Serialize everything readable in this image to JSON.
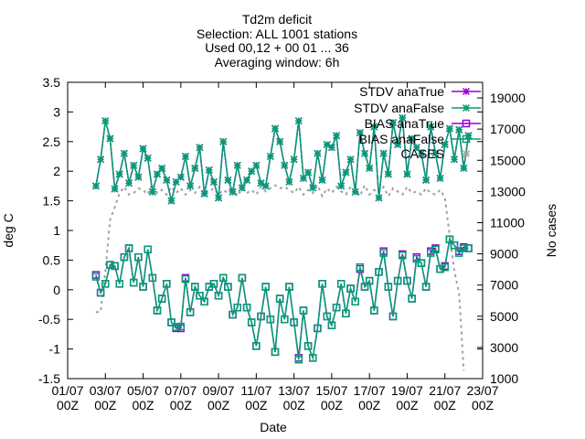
{
  "chart_data": {
    "type": "line",
    "title_lines": [
      "Td2m deficit",
      "Selection: ALL    1001 stations",
      "Used 00,12 + 00 01 ... 36",
      "Averaging window:  6h"
    ],
    "xlabel": "Date",
    "ylabel": "deg C",
    "y2label": "No cases",
    "xlim": [
      0,
      22
    ],
    "ylim": [
      -1.5,
      3.5
    ],
    "y2lim": [
      1000,
      20000
    ],
    "x_ticks": [
      {
        "x": 0,
        "line1": "01/07",
        "line2": "00Z"
      },
      {
        "x": 2,
        "line1": "03/07",
        "line2": "00Z"
      },
      {
        "x": 4,
        "line1": "05/07",
        "line2": "00Z"
      },
      {
        "x": 6,
        "line1": "07/07",
        "line2": "00Z"
      },
      {
        "x": 8,
        "line1": "09/07",
        "line2": "00Z"
      },
      {
        "x": 10,
        "line1": "11/07",
        "line2": "00Z"
      },
      {
        "x": 12,
        "line1": "13/07",
        "line2": "00Z"
      },
      {
        "x": 14,
        "line1": "15/07",
        "line2": "00Z"
      },
      {
        "x": 16,
        "line1": "17/07",
        "line2": "00Z"
      },
      {
        "x": 18,
        "line1": "19/07",
        "line2": "00Z"
      },
      {
        "x": 20,
        "line1": "21/07",
        "line2": "00Z"
      },
      {
        "x": 22,
        "line1": "23/07",
        "line2": "00Z"
      }
    ],
    "y_ticks": [
      "-1.5",
      "-1",
      "-0.5",
      "0",
      "0.5",
      "1",
      "1.5",
      "2",
      "2.5",
      "3",
      "3.5"
    ],
    "y2_ticks": [
      "1000",
      "3000",
      "5000",
      "7000",
      "9000",
      "11000",
      "13000",
      "15000",
      "17000",
      "19000"
    ],
    "x": [
      1.5,
      1.75,
      2.0,
      2.25,
      2.5,
      2.75,
      3.0,
      3.25,
      3.5,
      3.75,
      4.0,
      4.25,
      4.5,
      4.75,
      5.0,
      5.25,
      5.5,
      5.75,
      6.0,
      6.25,
      6.5,
      6.75,
      7.0,
      7.25,
      7.5,
      7.75,
      8.0,
      8.25,
      8.5,
      8.75,
      9.0,
      9.25,
      9.5,
      9.75,
      10.0,
      10.25,
      10.5,
      10.75,
      11.0,
      11.25,
      11.5,
      11.75,
      12.0,
      12.25,
      12.5,
      12.75,
      13.0,
      13.25,
      13.5,
      13.75,
      14.0,
      14.25,
      14.5,
      14.75,
      15.0,
      15.25,
      15.5,
      15.75,
      16.0,
      16.25,
      16.5,
      16.75,
      17.0,
      17.25,
      17.5,
      17.75,
      18.0,
      18.25,
      18.5,
      18.75,
      19.0,
      19.25,
      19.5,
      19.75,
      20.0,
      20.25,
      20.5,
      20.75,
      21.0,
      21.25
    ],
    "series": [
      {
        "name": "STDV anaTrue",
        "color": "#9400d3",
        "marker": "star",
        "values": [
          1.75,
          2.2,
          2.85,
          2.55,
          1.7,
          1.95,
          2.3,
          1.8,
          2.1,
          1.9,
          2.38,
          2.22,
          1.65,
          1.95,
          2.05,
          1.85,
          1.5,
          1.82,
          1.9,
          2.25,
          1.75,
          2.05,
          2.4,
          1.62,
          2.02,
          1.82,
          1.55,
          2.5,
          1.85,
          1.65,
          2.1,
          1.72,
          1.85,
          2.0,
          2.1,
          1.8,
          1.75,
          2.25,
          2.72,
          2.5,
          2.1,
          1.82,
          2.2,
          2.85,
          1.88,
          1.98,
          1.72,
          2.3,
          1.85,
          2.45,
          2.4,
          2.6,
          1.75,
          1.98,
          2.2,
          1.65,
          2.65,
          2.3,
          2.05,
          2.75,
          1.55,
          2.3,
          1.95,
          2.82,
          2.45,
          2.9,
          1.95,
          2.55,
          2.4,
          2.3,
          1.85,
          2.75,
          2.3,
          1.88,
          2.45,
          2.72,
          2.2,
          2.7,
          2.05,
          2.6
        ],
        "stroke_width": 1.5
      },
      {
        "name": "STDV anaFalse",
        "color": "#009e73",
        "marker": "star",
        "values": [
          1.75,
          2.2,
          2.85,
          2.55,
          1.7,
          1.95,
          2.3,
          1.8,
          2.1,
          1.9,
          2.38,
          2.22,
          1.65,
          1.95,
          2.05,
          1.85,
          1.5,
          1.82,
          1.9,
          2.25,
          1.75,
          2.05,
          2.4,
          1.62,
          2.02,
          1.82,
          1.55,
          2.5,
          1.85,
          1.65,
          2.1,
          1.72,
          1.85,
          2.0,
          2.1,
          1.8,
          1.75,
          2.25,
          2.72,
          2.5,
          2.1,
          1.82,
          2.2,
          2.85,
          1.88,
          1.98,
          1.72,
          2.3,
          1.85,
          2.45,
          2.4,
          2.6,
          1.75,
          1.98,
          2.2,
          1.65,
          2.65,
          2.3,
          2.05,
          2.75,
          1.55,
          2.3,
          1.95,
          2.82,
          2.45,
          2.9,
          1.95,
          2.55,
          2.4,
          2.3,
          1.85,
          2.75,
          2.3,
          1.88,
          2.45,
          2.72,
          2.2,
          2.7,
          2.05,
          2.6
        ],
        "stroke_width": 1.5
      },
      {
        "name": "BIAS anaTrue",
        "color": "#9400d3",
        "marker": "square",
        "values": [
          0.25,
          -0.05,
          0.1,
          0.42,
          0.4,
          0.1,
          0.55,
          0.7,
          0.12,
          0.55,
          0.05,
          0.68,
          0.2,
          -0.35,
          -0.15,
          0.1,
          -0.55,
          -0.65,
          -0.65,
          0.2,
          -0.38,
          0.05,
          -0.1,
          -0.2,
          0.05,
          0.1,
          -0.1,
          0.2,
          0.05,
          -0.42,
          -0.3,
          0.2,
          -0.3,
          -0.55,
          -0.95,
          -0.45,
          0.05,
          -0.5,
          -1.05,
          -0.15,
          -0.5,
          0.05,
          -0.55,
          -1.15,
          -0.35,
          -0.95,
          -1.15,
          -0.65,
          0.1,
          -0.45,
          -0.6,
          -0.3,
          0.1,
          -0.4,
          0.02,
          -0.2,
          0.35,
          0.05,
          0.15,
          -0.35,
          0.3,
          0.65,
          0.05,
          -0.45,
          0.15,
          0.6,
          0.15,
          -0.15,
          0.55,
          0.45,
          0.05,
          0.65,
          0.7,
          0.35,
          0.4,
          0.85,
          0.75,
          0.65,
          0.72,
          0.7
        ],
        "stroke_width": 1.5
      },
      {
        "name": "BIAS anaFalse",
        "color": "#009e73",
        "marker": "square",
        "values": [
          0.22,
          -0.05,
          0.1,
          0.42,
          0.4,
          0.1,
          0.55,
          0.7,
          0.12,
          0.55,
          0.05,
          0.68,
          0.2,
          -0.35,
          -0.15,
          0.1,
          -0.55,
          -0.63,
          -0.62,
          0.18,
          -0.38,
          0.05,
          -0.1,
          -0.2,
          0.05,
          0.1,
          -0.1,
          0.2,
          0.05,
          -0.42,
          -0.3,
          0.2,
          -0.3,
          -0.55,
          -0.95,
          -0.45,
          0.05,
          -0.5,
          -1.05,
          -0.15,
          -0.5,
          0.05,
          -0.55,
          -1.18,
          -0.35,
          -0.95,
          -1.15,
          -0.65,
          0.1,
          -0.45,
          -0.6,
          -0.3,
          0.1,
          -0.4,
          0.02,
          -0.2,
          0.38,
          0.05,
          0.15,
          -0.35,
          0.3,
          0.62,
          0.05,
          -0.45,
          0.15,
          0.58,
          0.15,
          -0.15,
          0.52,
          0.45,
          0.05,
          0.62,
          0.68,
          0.35,
          0.38,
          0.85,
          0.75,
          0.62,
          0.7,
          0.7
        ],
        "stroke_width": 1.5
      }
    ],
    "cases": {
      "name": "CASES",
      "color": "#a0a0a0",
      "axis": "y2",
      "style": "dashed",
      "points": [
        [
          1.5,
          5250
        ],
        [
          1.75,
          5300
        ],
        [
          2.0,
          7900
        ],
        [
          2.25,
          11200
        ],
        [
          2.5,
          12000
        ],
        [
          2.75,
          12900
        ],
        [
          3.0,
          13300
        ],
        [
          3.25,
          12800
        ],
        [
          3.5,
          12900
        ],
        [
          3.75,
          13200
        ],
        [
          4.0,
          13100
        ],
        [
          4.25,
          12800
        ],
        [
          4.5,
          13500
        ],
        [
          4.75,
          12900
        ],
        [
          5.0,
          13100
        ],
        [
          5.25,
          12800
        ],
        [
          5.5,
          13300
        ],
        [
          5.75,
          12900
        ],
        [
          6.0,
          13200
        ],
        [
          6.25,
          12800
        ],
        [
          6.5,
          13100
        ],
        [
          6.75,
          12900
        ],
        [
          7.0,
          13300
        ],
        [
          7.25,
          12800
        ],
        [
          7.5,
          13000
        ],
        [
          7.75,
          13200
        ],
        [
          8.0,
          12800
        ],
        [
          8.25,
          13100
        ],
        [
          8.5,
          12900
        ],
        [
          8.75,
          13300
        ],
        [
          9.0,
          12700
        ],
        [
          9.25,
          13200
        ],
        [
          9.5,
          12900
        ],
        [
          9.75,
          13100
        ],
        [
          10.0,
          12800
        ],
        [
          10.25,
          13300
        ],
        [
          10.5,
          13000
        ],
        [
          10.75,
          13200
        ],
        [
          11.0,
          13400
        ],
        [
          11.25,
          13200
        ],
        [
          11.5,
          13300
        ],
        [
          11.75,
          13100
        ],
        [
          12.0,
          12900
        ],
        [
          12.25,
          13300
        ],
        [
          12.5,
          12800
        ],
        [
          12.75,
          13100
        ],
        [
          13.0,
          12900
        ],
        [
          13.25,
          13400
        ],
        [
          13.5,
          12700
        ],
        [
          13.75,
          13200
        ],
        [
          14.0,
          12900
        ],
        [
          14.25,
          13300
        ],
        [
          14.5,
          13000
        ],
        [
          14.75,
          12800
        ],
        [
          15.0,
          13300
        ],
        [
          15.25,
          13200
        ],
        [
          15.5,
          12700
        ],
        [
          15.75,
          13400
        ],
        [
          16.0,
          12800
        ],
        [
          16.25,
          13100
        ],
        [
          16.5,
          12900
        ],
        [
          16.75,
          13300
        ],
        [
          17.0,
          12700
        ],
        [
          17.25,
          13200
        ],
        [
          17.5,
          13000
        ],
        [
          17.75,
          12800
        ],
        [
          18.0,
          13300
        ],
        [
          18.25,
          12900
        ],
        [
          18.5,
          13000
        ],
        [
          18.75,
          12800
        ],
        [
          19.0,
          13200
        ],
        [
          19.25,
          12900
        ],
        [
          19.5,
          12800
        ],
        [
          19.75,
          13100
        ],
        [
          20.0,
          12600
        ],
        [
          20.25,
          10200
        ],
        [
          20.5,
          7900
        ],
        [
          20.75,
          6500
        ],
        [
          21.0,
          1500
        ]
      ]
    },
    "legend": {
      "placement": "top-right",
      "entries": [
        "STDV anaTrue",
        "STDV anaFalse",
        "BIAS anaTrue",
        "BIAS anaFalse",
        "CASES"
      ]
    },
    "grid": false
  }
}
